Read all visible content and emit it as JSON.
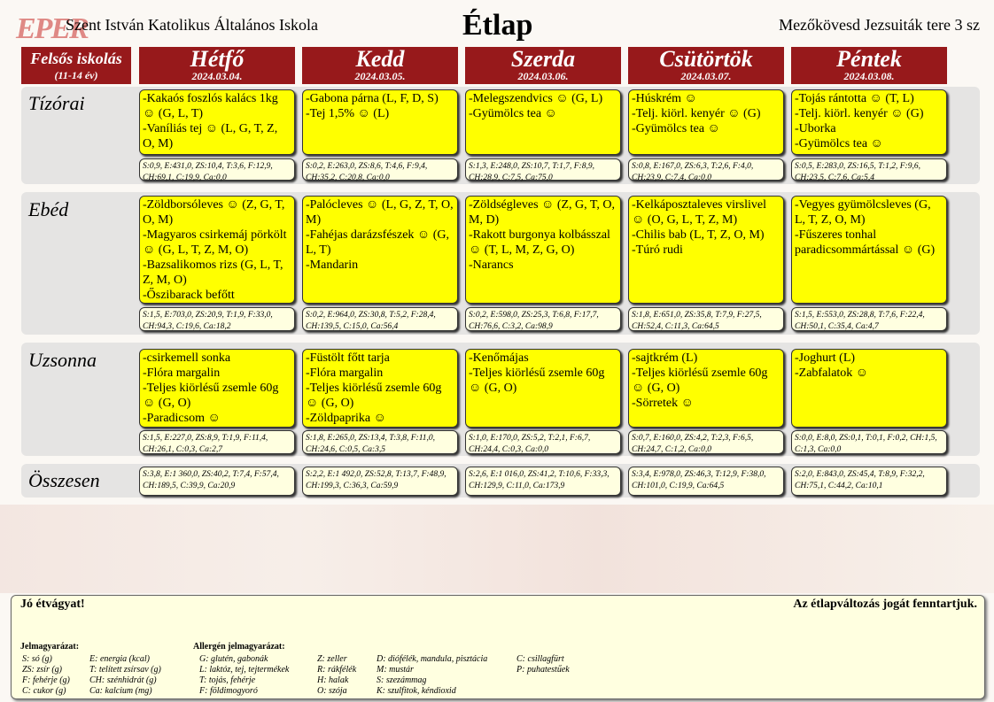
{
  "header": {
    "logo": "EPER",
    "school": "Szent István Katolikus Általános Iskola",
    "title": "Étlap",
    "address": "Mezőkövesd Jezsuiták tere 3 sz"
  },
  "group": {
    "label": "Felsős iskolás",
    "sub": "(11-14 év)"
  },
  "days": [
    {
      "name": "Hétfő",
      "date": "2024.03.04."
    },
    {
      "name": "Kedd",
      "date": "2024.03.05."
    },
    {
      "name": "Szerda",
      "date": "2024.03.06."
    },
    {
      "name": "Csütörtök",
      "date": "2024.03.07."
    },
    {
      "name": "Péntek",
      "date": "2024.03.08."
    }
  ],
  "rows": [
    {
      "label": "Tízórai",
      "meals": [
        [
          "-Kakaós foszlós kalács 1kg ☺ (G, L, T)",
          "-Vaníliás tej ☺ (L, G, T, Z, O, M)"
        ],
        [
          "-Gabona párna (L, F, D, S)",
          "-Tej 1,5% ☺ (L)"
        ],
        [
          "-Melegszendvics ☺ (G, L)",
          "-Gyümölcs tea ☺"
        ],
        [
          "-Húskrém ☺",
          "-Telj. kiörl. kenyér ☺ (G)",
          "-Gyümölcs tea ☺"
        ],
        [
          "-Tojás rántotta ☺ (T, L)",
          "-Telj. kiörl. kenyér ☺ (G)",
          "-Uborka",
          "-Gyümölcs tea ☺"
        ]
      ],
      "nutrition": [
        "S:0,9, E:431,0, ZS:10,4, T:3,6, F:12,9, CH:69,1, C:19,9, Ca:0,0",
        "S:0,2, E:263,0, ZS:8,6, T:4,6, F:9,4, CH:35,2, C:20,8, Ca:0,0",
        "S:1,3, E:248,0, ZS:10,7, T:1,7, F:8,9, CH:28,9, C:7,5, Ca:75,0",
        "S:0,8, E:167,0, ZS:6,3, T:2,6, F:4,0, CH:23,9, C:7,4, Ca:0,0",
        "S:0,5, E:283,0, ZS:16,5, T:1,2, F:9,6, CH:23,5, C:7,6, Ca:5,4"
      ]
    },
    {
      "label": "Ebéd",
      "meals": [
        [
          "-Zöldborsóleves ☺ (Z, G, T, O, M)",
          "-Magyaros csirkemáj pörkölt ☺ (G, L, T, Z, M, O)",
          "-Bazsalikomos rizs (G, L, T, Z, M, O)",
          "-Őszibarack befőtt"
        ],
        [
          "-Palócleves ☺ (L, G, Z, T, O, M)",
          "-Fahéjas darázsfészek ☺ (G, L, T)",
          "-Mandarin"
        ],
        [
          "-Zöldségleves ☺ (Z, G, T, O, M, D)",
          "-Rakott burgonya kolbásszal ☺ (T, L, M, Z, G, O)",
          "-Narancs"
        ],
        [
          "-Kelkáposztaleves virslivel ☺ (O, G, L, T, Z, M)",
          "-Chilis bab (L, T, Z, O, M)",
          "-Túró rudi"
        ],
        [
          "-Vegyes gyümölcsleves (G, L, T, Z, O, M)",
          "-Fűszeres tonhal paradicsommártással ☺ (G)"
        ]
      ],
      "nutrition": [
        "S:1,5, E:703,0, ZS:20,9, T:1,9, F:33,0, CH:94,3, C:19,6, Ca:18,2",
        "S:0,2, E:964,0, ZS:30,8, T:5,2, F:28,4, CH:139,5, C:15,0, Ca:56,4",
        "S:0,2, E:598,0, ZS:25,3, T:6,8, F:17,7, CH:76,6, C:3,2, Ca:98,9",
        "S:1,8, E:651,0, ZS:35,8, T:7,9, F:27,5, CH:52,4, C:11,3, Ca:64,5",
        "S:1,5, E:553,0, ZS:28,8, T:7,6, F:22,4, CH:50,1, C:35,4, Ca:4,7"
      ]
    },
    {
      "label": "Uzsonna",
      "meals": [
        [
          "-csirkemell sonka",
          "-Flóra margalin",
          "-Teljes kiörlésű zsemle 60g ☺ (G, O)",
          "-Paradicsom ☺"
        ],
        [
          "-Füstölt főtt tarja",
          "-Flóra margalin",
          "-Teljes kiörlésű zsemle 60g ☺ (G, O)",
          "-Zöldpaprika ☺"
        ],
        [
          "-Kenőmájas",
          "-Teljes kiörlésű zsemle 60g ☺ (G, O)"
        ],
        [
          "-sajtkrém (L)",
          "-Teljes kiörlésű zsemle 60g ☺ (G, O)",
          "-Sörretek ☺"
        ],
        [
          "-Joghurt (L)",
          "-Zabfalatok ☺"
        ]
      ],
      "nutrition": [
        "S:1,5, E:227,0, ZS:8,9, T:1,9, F:11,4, CH:26,1, C:0,3, Ca:2,7",
        "S:1,8, E:265,0, ZS:13,4, T:3,8, F:11,0, CH:24,6, C:0,5, Ca:3,5",
        "S:1,0, E:170,0, ZS:5,2, T:2,1, F:6,7, CH:24,4, C:0,3, Ca:0,0",
        "S:0,7, E:160,0, ZS:4,2, T:2,3, F:6,5, CH:24,7, C:1,2, Ca:0,0",
        "S:0,0, E:8,0, ZS:0,1, T:0,1, F:0,2, CH:1,5, C:1,3, Ca:0,0"
      ]
    },
    {
      "label": "Összesen",
      "nutrition": [
        "S:3,8, E:1 360,0, ZS:40,2, T:7,4, F:57,4, CH:189,5, C:39,9, Ca:20,9",
        "S:2,2, E:1 492,0, ZS:52,8, T:13,7, F:48,9, CH:199,3, C:36,3, Ca:59,9",
        "S:2,6, E:1 016,0, ZS:41,2, T:10,6, F:33,3, CH:129,9, C:11,0, Ca:173,9",
        "S:3,4, E:978,0, ZS:46,3, T:12,9, F:38,0, CH:101,0, C:19,9, Ca:64,5",
        "S:2,0, E:843,0, ZS:45,4, T:8,9, F:32,2, CH:75,1, C:44,2, Ca:10,1"
      ]
    }
  ],
  "footer": {
    "greeting": "Jó étvágyat!",
    "reserve": "Az étlapváltozás jogát fenntartjuk.",
    "legend_title": "Jelmagyarázat:",
    "allergen_title": "Allergén jelmagyarázat:",
    "legend_cols": [
      [
        "S: só (g)",
        "ZS: zsír (g)",
        "F: fehérje (g)",
        "C: cukor (g)"
      ],
      [
        "E: energia (kcal)",
        "T: telített zsírsav (g)",
        "CH: szénhidrát (g)",
        "Ca: kalcium (mg)"
      ]
    ],
    "allergen_cols": [
      [
        "G: glutén, gabonák",
        "L: laktóz, tej, tejtermékek",
        "T: tojás, fehérje",
        "F: földimogyoró"
      ],
      [
        "Z: zeller",
        "R: rákfélék",
        "H: halak",
        "O: szója"
      ],
      [
        "D: diófélék, mandula, pisztácia",
        "M: mustár",
        "S: szezámmag",
        "K: szulfitok, kéndioxid"
      ],
      [
        "C: csillagfürt",
        "P: puhatestűek"
      ]
    ]
  },
  "colors": {
    "header_bg": "#97191b",
    "meal_bg": "#ffff00",
    "nutrition_bg": "#ffffe0"
  }
}
